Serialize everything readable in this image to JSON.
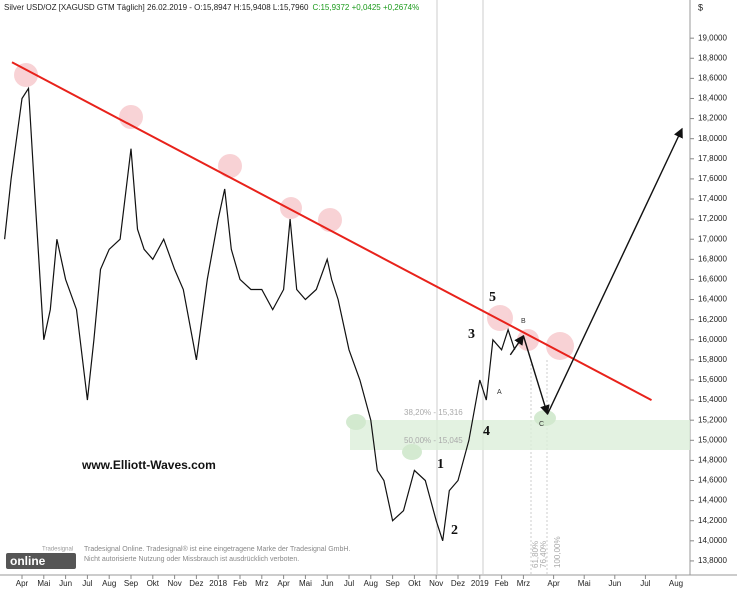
{
  "chart_data": {
    "type": "line",
    "title": "Silver USD/OZ [XAGUSD GTM  Täglich] 26.02.2019 - O:15,8947 H:15,9408 L:15,7960",
    "change": "C:15,9372 +0,0425 +0,2674%",
    "currency": "$",
    "color": "#111111",
    "x": [
      -0.8,
      -0.5,
      0,
      0.3,
      0.6,
      1,
      1.3,
      1.6,
      2,
      2.5,
      3,
      3.3,
      3.6,
      4,
      4.5,
      5,
      5.3,
      5.6,
      6,
      6.5,
      7,
      7.4,
      8,
      8.5,
      9,
      9.3,
      9.6,
      10,
      10.5,
      11,
      11.5,
      12,
      12.3,
      12.6,
      13,
      13.5,
      14,
      14.2,
      14.5,
      15,
      15.5,
      16,
      16.3,
      16.6,
      17,
      17.5,
      18,
      18.5,
      19,
      19.3,
      19.6,
      20,
      20.5,
      21,
      21.3,
      21.6,
      22,
      22.3,
      22.6
    ],
    "values": [
      17.0,
      17.6,
      18.4,
      18.5,
      17.4,
      16.0,
      16.3,
      17.0,
      16.6,
      16.3,
      15.4,
      16.0,
      16.7,
      16.9,
      17.0,
      17.9,
      17.1,
      16.9,
      16.8,
      17.0,
      16.7,
      16.5,
      15.8,
      16.6,
      17.2,
      17.5,
      16.9,
      16.6,
      16.5,
      16.5,
      16.3,
      16.5,
      17.2,
      16.5,
      16.4,
      16.5,
      16.8,
      16.6,
      16.4,
      15.9,
      15.6,
      15.2,
      14.7,
      14.6,
      14.2,
      14.3,
      14.7,
      14.6,
      14.2,
      14.0,
      14.5,
      14.6,
      15.0,
      15.6,
      15.4,
      16.0,
      15.9,
      16.1,
      15.9
    ],
    "trendline": {
      "color": "#e8221b",
      "x": [
        -0.46,
        27.2
      ],
      "values": [
        18.76,
        15.4
      ]
    },
    "projection": {
      "x": [
        22.4,
        23.0,
        23.8,
        28.2
      ],
      "values": [
        15.85,
        16.04,
        15.26,
        18.1
      ]
    },
    "xlim": [
      -1,
      29
    ],
    "ylim": [
      13.66,
      19.3
    ],
    "xticks": [
      {
        "value": 0,
        "label": "Apr"
      },
      {
        "value": 1,
        "label": "Mai"
      },
      {
        "value": 2,
        "label": "Jun"
      },
      {
        "value": 3,
        "label": "Jul"
      },
      {
        "value": 4,
        "label": "Aug"
      },
      {
        "value": 5,
        "label": "Sep"
      },
      {
        "value": 6,
        "label": "Okt"
      },
      {
        "value": 7,
        "label": "Nov"
      },
      {
        "value": 8,
        "label": "Dez"
      },
      {
        "value": 9,
        "label": "2018"
      },
      {
        "value": 10,
        "label": "Feb"
      },
      {
        "value": 11,
        "label": "Mrz"
      },
      {
        "value": 12,
        "label": "Apr"
      },
      {
        "value": 13,
        "label": "Mai"
      },
      {
        "value": 14,
        "label": "Jun"
      },
      {
        "value": 15,
        "label": "Jul"
      },
      {
        "value": 16,
        "label": "Aug"
      },
      {
        "value": 17,
        "label": "Sep"
      },
      {
        "value": 18,
        "label": "Okt"
      },
      {
        "value": 19,
        "label": "Nov"
      },
      {
        "value": 20,
        "label": "Dez"
      },
      {
        "value": 21,
        "label": "2019"
      },
      {
        "value": 22,
        "label": "Feb"
      },
      {
        "value": 23,
        "label": "Mrz"
      },
      {
        "value": 24,
        "label": "Apr"
      },
      {
        "value": 25,
        "label": "Mai"
      },
      {
        "value": 26,
        "label": "Jun"
      },
      {
        "value": 27,
        "label": "Jul"
      },
      {
        "value": 28,
        "label": "Aug"
      }
    ],
    "yticks": [
      {
        "value": 13.8,
        "label": "13,8000"
      },
      {
        "value": 14.0,
        "label": "14,0000"
      },
      {
        "value": 14.2,
        "label": "14,2000"
      },
      {
        "value": 14.4,
        "label": "14,4000"
      },
      {
        "value": 14.6,
        "label": "14,6000"
      },
      {
        "value": 14.8,
        "label": "14,8000"
      },
      {
        "value": 15.0,
        "label": "15,0000"
      },
      {
        "value": 15.2,
        "label": "15,2000"
      },
      {
        "value": 15.4,
        "label": "15,4000"
      },
      {
        "value": 15.6,
        "label": "15,6000"
      },
      {
        "value": 15.8,
        "label": "15,8000"
      },
      {
        "value": 16.0,
        "label": "16,0000"
      },
      {
        "value": 16.2,
        "label": "16,2000"
      },
      {
        "value": 16.4,
        "label": "16,4000"
      },
      {
        "value": 16.6,
        "label": "16,6000"
      },
      {
        "value": 16.8,
        "label": "16,8000"
      },
      {
        "value": 17.0,
        "label": "17,0000"
      },
      {
        "value": 17.2,
        "label": "17,2000"
      },
      {
        "value": 17.4,
        "label": "17,4000"
      },
      {
        "value": 17.6,
        "label": "17,6000"
      },
      {
        "value": 17.8,
        "label": "17,8000"
      },
      {
        "value": 18.0,
        "label": "18,0000"
      },
      {
        "value": 18.2,
        "label": "18,2000"
      },
      {
        "value": 18.4,
        "label": "18,4000"
      },
      {
        "value": 18.6,
        "label": "18,6000"
      },
      {
        "value": 18.8,
        "label": "18,8000"
      },
      {
        "value": 19.0,
        "label": "19,0000"
      }
    ],
    "waves": [
      "5",
      "3",
      "4",
      "1",
      "2",
      "A",
      "B",
      "C"
    ],
    "fib_levels": [
      "38,20% - 15,316",
      "50,00% - 15,045",
      "61,80%",
      "76,40%",
      "100,00%"
    ],
    "watermark": "www.Elliott-Waves.com",
    "footer": [
      "Tradesignal Online. Tradesignal® ist eine eingetragene Marke der Tradesignal GmbH.",
      "Nicht autorisierte Nutzung oder Missbrauch ist ausdrücklich verboten."
    ],
    "logo": [
      "Tradesignal",
      "online"
    ]
  }
}
